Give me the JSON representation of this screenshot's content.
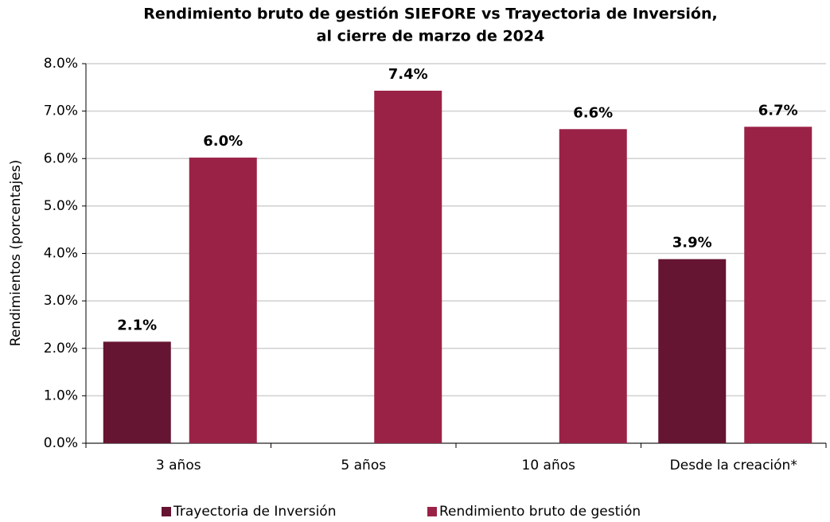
{
  "chart_data": {
    "type": "bar",
    "title": [
      "Rendimiento bruto de gestión SIEFORE vs Trayectoria de Inversión,",
      "al cierre de marzo de 2024"
    ],
    "y_label": "Rendimientos (porcentajes)",
    "categories": [
      "3 años",
      "5 años",
      "10 años",
      "Desde la creación*"
    ],
    "series": [
      {
        "name": "Trayectoria de Inversión",
        "color": "#651432",
        "values": [
          2.14,
          null,
          null,
          3.88
        ],
        "value_labels": [
          "2.1%",
          null,
          null,
          "3.9%"
        ]
      },
      {
        "name": "Rendimiento bruto de gestión",
        "color": "#9b2247",
        "values": [
          6.02,
          7.43,
          6.62,
          6.67
        ],
        "value_labels": [
          "6.0%",
          "7.4%",
          "6.6%",
          "6.7%"
        ]
      }
    ],
    "ylim": [
      0,
      8
    ],
    "yticks": [
      {
        "value": 0,
        "label": "0.0%"
      },
      {
        "value": 1,
        "label": "1.0%"
      },
      {
        "value": 2,
        "label": "2.0%"
      },
      {
        "value": 3,
        "label": "3.0%"
      },
      {
        "value": 4,
        "label": "4.0%"
      },
      {
        "value": 5,
        "label": "5.0%"
      },
      {
        "value": 6,
        "label": "6.0%"
      },
      {
        "value": 7,
        "label": "7.0%"
      },
      {
        "value": 8,
        "label": "8.0%"
      }
    ],
    "grid": true,
    "legend": "bottom"
  }
}
